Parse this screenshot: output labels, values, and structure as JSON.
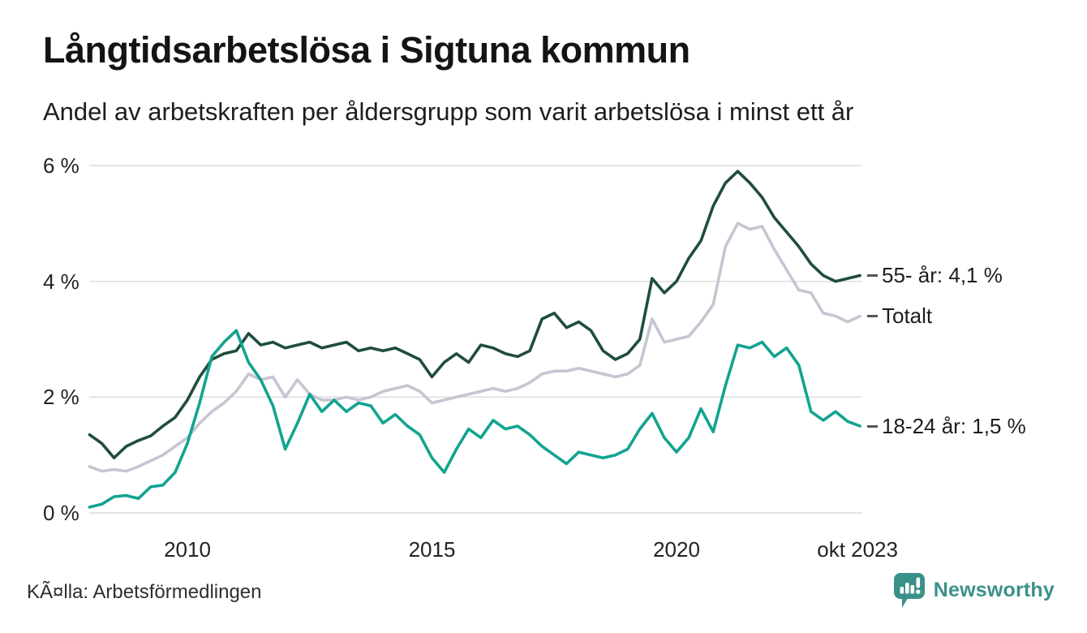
{
  "header": {
    "title": "Långtidsarbetslösa i Sigtuna kommun",
    "subtitle": "Andel av arbetskraften per åldersgrupp som varit arbetslösa i minst ett år"
  },
  "footer": {
    "source": "KÃ¤lla: Arbetsförmedlingen",
    "brand": "Newsworthy",
    "brand_color": "#3a9189"
  },
  "chart_data": {
    "type": "line",
    "title": "Långtidsarbetslösa i Sigtuna kommun",
    "subtitle": "Andel av arbetskraften per åldersgrupp som varit arbetslösa i minst ett år",
    "xlabel": "",
    "ylabel": "",
    "ylim": [
      0,
      6
    ],
    "xlim": [
      2008.0,
      2023.83
    ],
    "grid": true,
    "legend_position": "right-end-labels",
    "x_start": 2008.0,
    "x_step": 0.25,
    "x_ticks": [
      {
        "x": 2010,
        "label": "2010"
      },
      {
        "x": 2015,
        "label": "2015"
      },
      {
        "x": 2020,
        "label": "2020"
      },
      {
        "x": 2023.7,
        "label": "okt 2023"
      }
    ],
    "y_ticks": [
      {
        "v": 0,
        "label": "0 %"
      },
      {
        "v": 2,
        "label": "2 %"
      },
      {
        "v": 4,
        "label": "4 %"
      },
      {
        "v": 6,
        "label": "6 %"
      }
    ],
    "series": [
      {
        "name": "Totalt",
        "color": "#c7c5d2",
        "end_label": "Totalt",
        "values": [
          0.8,
          0.72,
          0.75,
          0.72,
          0.8,
          0.9,
          1.0,
          1.15,
          1.3,
          1.55,
          1.75,
          1.9,
          2.1,
          2.4,
          2.3,
          2.35,
          2.0,
          2.3,
          2.05,
          1.95,
          1.95,
          2.0,
          1.95,
          2.0,
          2.1,
          2.15,
          2.2,
          2.1,
          1.9,
          1.95,
          2.0,
          2.05,
          2.1,
          2.15,
          2.1,
          2.15,
          2.25,
          2.4,
          2.45,
          2.45,
          2.5,
          2.45,
          2.4,
          2.35,
          2.4,
          2.55,
          3.35,
          2.95,
          3.0,
          3.05,
          3.3,
          3.6,
          4.6,
          5.0,
          4.9,
          4.95,
          4.55,
          4.2,
          3.85,
          3.8,
          3.45,
          3.4,
          3.3,
          3.4
        ]
      },
      {
        "name": "55- år",
        "color": "#1f4d3e",
        "end_label": "55- år: 4,1 %",
        "values": [
          1.35,
          1.2,
          0.95,
          1.15,
          1.25,
          1.33,
          1.5,
          1.65,
          1.95,
          2.35,
          2.65,
          2.75,
          2.8,
          3.1,
          2.9,
          2.95,
          2.85,
          2.9,
          2.95,
          2.85,
          2.9,
          2.95,
          2.8,
          2.85,
          2.8,
          2.85,
          2.75,
          2.65,
          2.35,
          2.6,
          2.75,
          2.6,
          2.9,
          2.85,
          2.75,
          2.7,
          2.8,
          3.35,
          3.45,
          3.2,
          3.3,
          3.15,
          2.8,
          2.65,
          2.75,
          3.0,
          4.05,
          3.8,
          4.0,
          4.4,
          4.7,
          5.3,
          5.7,
          5.9,
          5.7,
          5.45,
          5.1,
          4.85,
          4.6,
          4.3,
          4.1,
          4.0,
          4.05,
          4.1
        ]
      },
      {
        "name": "18-24 år",
        "color": "#12a391",
        "end_label": "18-24 år: 1,5 %",
        "values": [
          0.1,
          0.15,
          0.28,
          0.3,
          0.25,
          0.45,
          0.48,
          0.7,
          1.2,
          1.9,
          2.7,
          2.95,
          3.15,
          2.6,
          2.3,
          1.85,
          1.1,
          1.55,
          2.05,
          1.75,
          1.95,
          1.75,
          1.9,
          1.85,
          1.55,
          1.7,
          1.5,
          1.35,
          0.95,
          0.7,
          1.1,
          1.45,
          1.3,
          1.6,
          1.45,
          1.5,
          1.35,
          1.15,
          1.0,
          0.85,
          1.05,
          1.0,
          0.95,
          1.0,
          1.1,
          1.45,
          1.72,
          1.3,
          1.05,
          1.3,
          1.8,
          1.4,
          2.2,
          2.9,
          2.85,
          2.95,
          2.7,
          2.85,
          2.55,
          1.75,
          1.6,
          1.75,
          1.58,
          1.5
        ]
      }
    ]
  }
}
